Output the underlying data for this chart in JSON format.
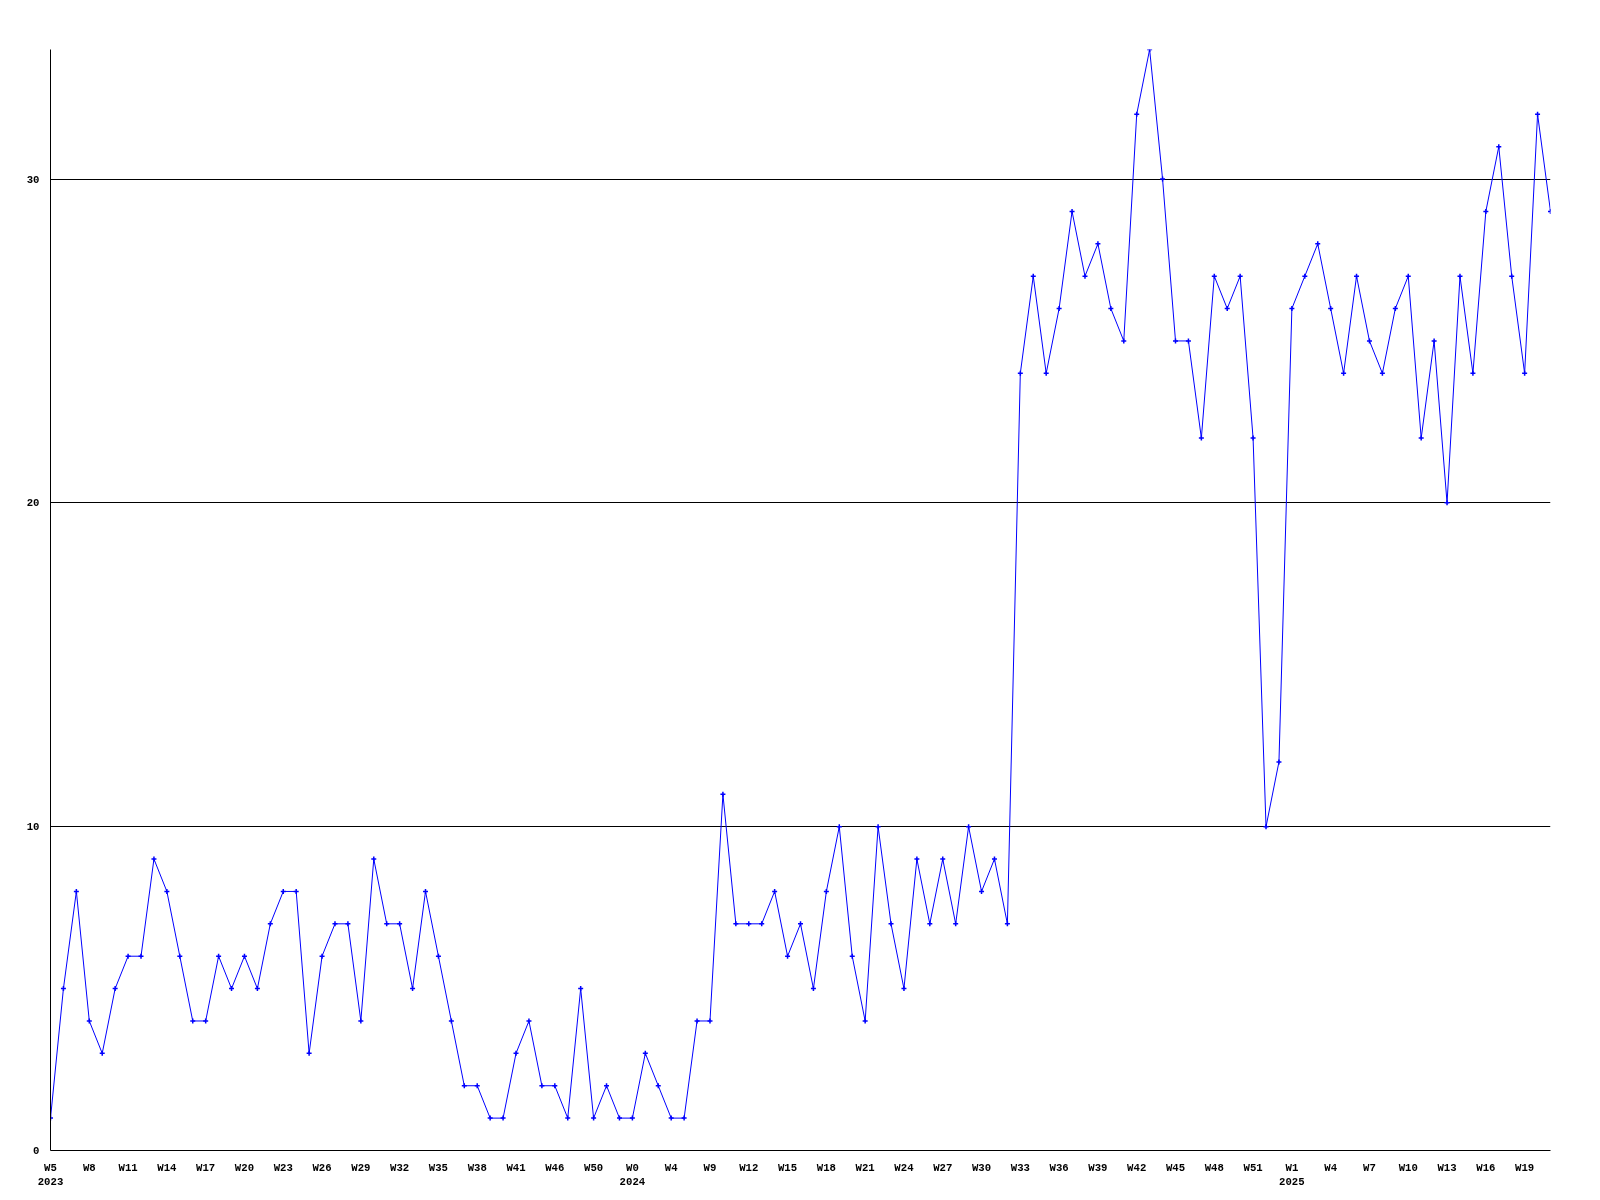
{
  "chart_data": {
    "type": "line",
    "categories": [
      "W5\n2023",
      null,
      null,
      "W8",
      null,
      null,
      "W11",
      null,
      null,
      "W14",
      null,
      null,
      "W17",
      null,
      null,
      "W20",
      null,
      null,
      "W23",
      null,
      null,
      "W26",
      null,
      null,
      "W29",
      null,
      null,
      "W32",
      null,
      null,
      "W35",
      null,
      null,
      "W38",
      null,
      null,
      "W41",
      null,
      null,
      "W46",
      null,
      null,
      "W50",
      null,
      null,
      "W0\n2024",
      null,
      null,
      "W4",
      null,
      null,
      "W9",
      null,
      null,
      "W12",
      null,
      null,
      "W15",
      null,
      null,
      "W18",
      null,
      null,
      "W21",
      null,
      null,
      "W24",
      null,
      null,
      "W27",
      null,
      null,
      "W30",
      null,
      null,
      "W33",
      null,
      null,
      "W36",
      null,
      null,
      "W39",
      null,
      null,
      "W42",
      null,
      null,
      "W45",
      null,
      null,
      "W48",
      null,
      null,
      "W51",
      null,
      null,
      "W1\n2025",
      null,
      null,
      "W4",
      null,
      null,
      "W7",
      null,
      null,
      "W10",
      null,
      null,
      "W13",
      null,
      null,
      "W16",
      null,
      null,
      "W19",
      null,
      null
    ],
    "series": [
      {
        "color": "#0000ff",
        "values": [
          1,
          5,
          8,
          4,
          3,
          5,
          6,
          6,
          9,
          8,
          6,
          4,
          4,
          6,
          5,
          6,
          5,
          7,
          8,
          8,
          3,
          6,
          7,
          7,
          4,
          9,
          7,
          7,
          5,
          8,
          6,
          4,
          2,
          2,
          1,
          1,
          3,
          4,
          2,
          2,
          1,
          5,
          1,
          2,
          1,
          1,
          3,
          2,
          1,
          1,
          4,
          4,
          11,
          7,
          7,
          7,
          8,
          6,
          7,
          5,
          8,
          10,
          6,
          4,
          10,
          7,
          5,
          9,
          7,
          9,
          7,
          10,
          8,
          9,
          7,
          24,
          27,
          24,
          26,
          29,
          27,
          28,
          26,
          25,
          32,
          34,
          30,
          25,
          25,
          22,
          27,
          26,
          27,
          22,
          10,
          12,
          26,
          27,
          28,
          26,
          24,
          27,
          25,
          24,
          26,
          27,
          22,
          25,
          20,
          27,
          24,
          29,
          31,
          27,
          24,
          32,
          29
        ]
      }
    ],
    "ylim": [
      0,
      34
    ],
    "yticks": [
      0,
      10,
      20,
      30
    ],
    "grid": "y",
    "marker": "cross"
  }
}
